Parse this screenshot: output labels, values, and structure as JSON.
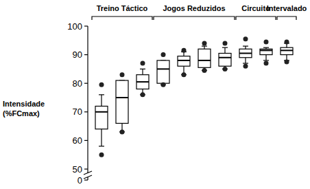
{
  "chart_data": {
    "type": "box",
    "y_label": [
      "Intensidade",
      "(%FCmax)"
    ],
    "categories": [
      null,
      null,
      null,
      null,
      null,
      null,
      null,
      null,
      null,
      null
    ],
    "whisker_low": [
      58,
      63,
      76,
      79.5,
      83,
      84.5,
      85,
      87,
      88,
      88
    ],
    "q1": [
      64,
      66,
      78,
      80,
      86,
      85.5,
      86,
      89,
      90,
      90
    ],
    "median": [
      70,
      75,
      80.5,
      85,
      88,
      88,
      89,
      90.5,
      91.5,
      91.5
    ],
    "q3": [
      72,
      81,
      83,
      88,
      89.5,
      92,
      90.5,
      92,
      92,
      92.5
    ],
    "whisker_high": [
      76,
      81,
      85,
      88,
      91,
      93,
      92.5,
      93,
      92.5,
      94
    ],
    "outliers": [
      [
        55,
        79.5
      ],
      [
        63,
        83
      ],
      [
        76,
        87
      ],
      [
        79.5,
        90
      ],
      [
        83,
        91.5
      ],
      [
        84.5,
        94
      ],
      [
        85,
        94
      ],
      [
        86,
        95.5
      ],
      [
        87,
        94.5
      ],
      [
        87.5,
        94.5
      ]
    ],
    "groups": [
      {
        "label": "Treino Táctico",
        "count": 3
      },
      {
        "label": "Jogos Reduzidos",
        "count": 4
      },
      {
        "label": "Circuito",
        "count": 2
      },
      {
        "label": "Intervalado",
        "count": 1
      }
    ],
    "ylim": [
      0,
      100
    ],
    "yticks": [
      0,
      50,
      60,
      70,
      80,
      90,
      100
    ],
    "color": "#ffffff",
    "grid": false
  }
}
